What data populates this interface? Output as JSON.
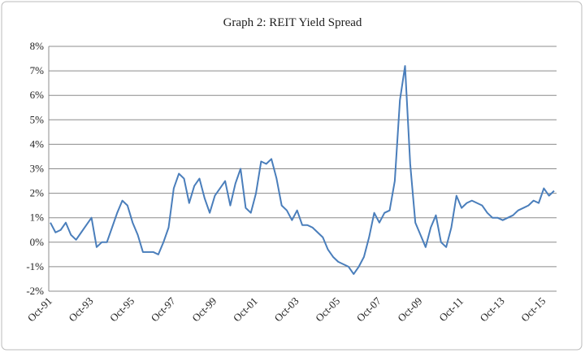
{
  "chart_data": {
    "type": "line",
    "title": "Graph 2: REIT Yield Spread",
    "categories": [
      "Oct-91",
      null,
      null,
      null,
      null,
      null,
      null,
      null,
      "Oct-93",
      null,
      null,
      null,
      null,
      null,
      null,
      null,
      "Oct-95",
      null,
      null,
      null,
      null,
      null,
      null,
      null,
      "Oct-97",
      null,
      null,
      null,
      null,
      null,
      null,
      null,
      "Oct-99",
      null,
      null,
      null,
      null,
      null,
      null,
      null,
      "Oct-01",
      null,
      null,
      null,
      null,
      null,
      null,
      null,
      "Oct-03",
      null,
      null,
      null,
      null,
      null,
      null,
      null,
      "Oct-05",
      null,
      null,
      null,
      null,
      null,
      null,
      null,
      "Oct-07",
      null,
      null,
      null,
      null,
      null,
      null,
      null,
      "Oct-09",
      null,
      null,
      null,
      null,
      null,
      null,
      null,
      "Oct-11",
      null,
      null,
      null,
      null,
      null,
      null,
      null,
      "Oct-13",
      null,
      null,
      null,
      null,
      null,
      null,
      null,
      "Oct-15",
      null,
      null
    ],
    "values": [
      0.8,
      0.4,
      0.5,
      0.8,
      0.3,
      0.1,
      0.4,
      0.7,
      1.0,
      -0.2,
      0.0,
      0.0,
      0.6,
      1.2,
      1.7,
      1.5,
      0.8,
      0.3,
      -0.4,
      -0.4,
      -0.4,
      -0.5,
      0.0,
      0.6,
      2.2,
      2.8,
      2.6,
      1.6,
      2.3,
      2.6,
      1.8,
      1.2,
      1.9,
      2.2,
      2.5,
      1.5,
      2.4,
      3.0,
      1.4,
      1.2,
      2.0,
      3.3,
      3.2,
      3.4,
      2.6,
      1.5,
      1.3,
      0.9,
      1.3,
      0.7,
      0.7,
      0.6,
      0.4,
      0.2,
      -0.3,
      -0.6,
      -0.8,
      -0.9,
      -1.0,
      -1.3,
      -1.0,
      -0.6,
      0.2,
      1.2,
      0.8,
      1.2,
      1.3,
      2.5,
      5.8,
      7.2,
      3.2,
      0.8,
      0.3,
      -0.2,
      0.6,
      1.1,
      0.0,
      -0.2,
      0.6,
      1.9,
      1.4,
      1.6,
      1.7,
      1.6,
      1.5,
      1.2,
      1.0,
      1.0,
      0.9,
      1.0,
      1.1,
      1.3,
      1.4,
      1.5,
      1.7,
      1.6,
      2.2,
      1.9,
      2.1
    ],
    "color": "#4a7ebb",
    "ylim": [
      -2,
      8
    ],
    "yticks": [
      {
        "value": -2,
        "label": "-2%"
      },
      {
        "value": -1,
        "label": "-1%"
      },
      {
        "value": 0,
        "label": "0%"
      },
      {
        "value": 1,
        "label": "1%"
      },
      {
        "value": 2,
        "label": "2%"
      },
      {
        "value": 3,
        "label": "3%"
      },
      {
        "value": 4,
        "label": "4%"
      },
      {
        "value": 5,
        "label": "5%"
      },
      {
        "value": 6,
        "label": "6%"
      },
      {
        "value": 7,
        "label": "7%"
      },
      {
        "value": 8,
        "label": "8%"
      }
    ],
    "grid": true
  }
}
